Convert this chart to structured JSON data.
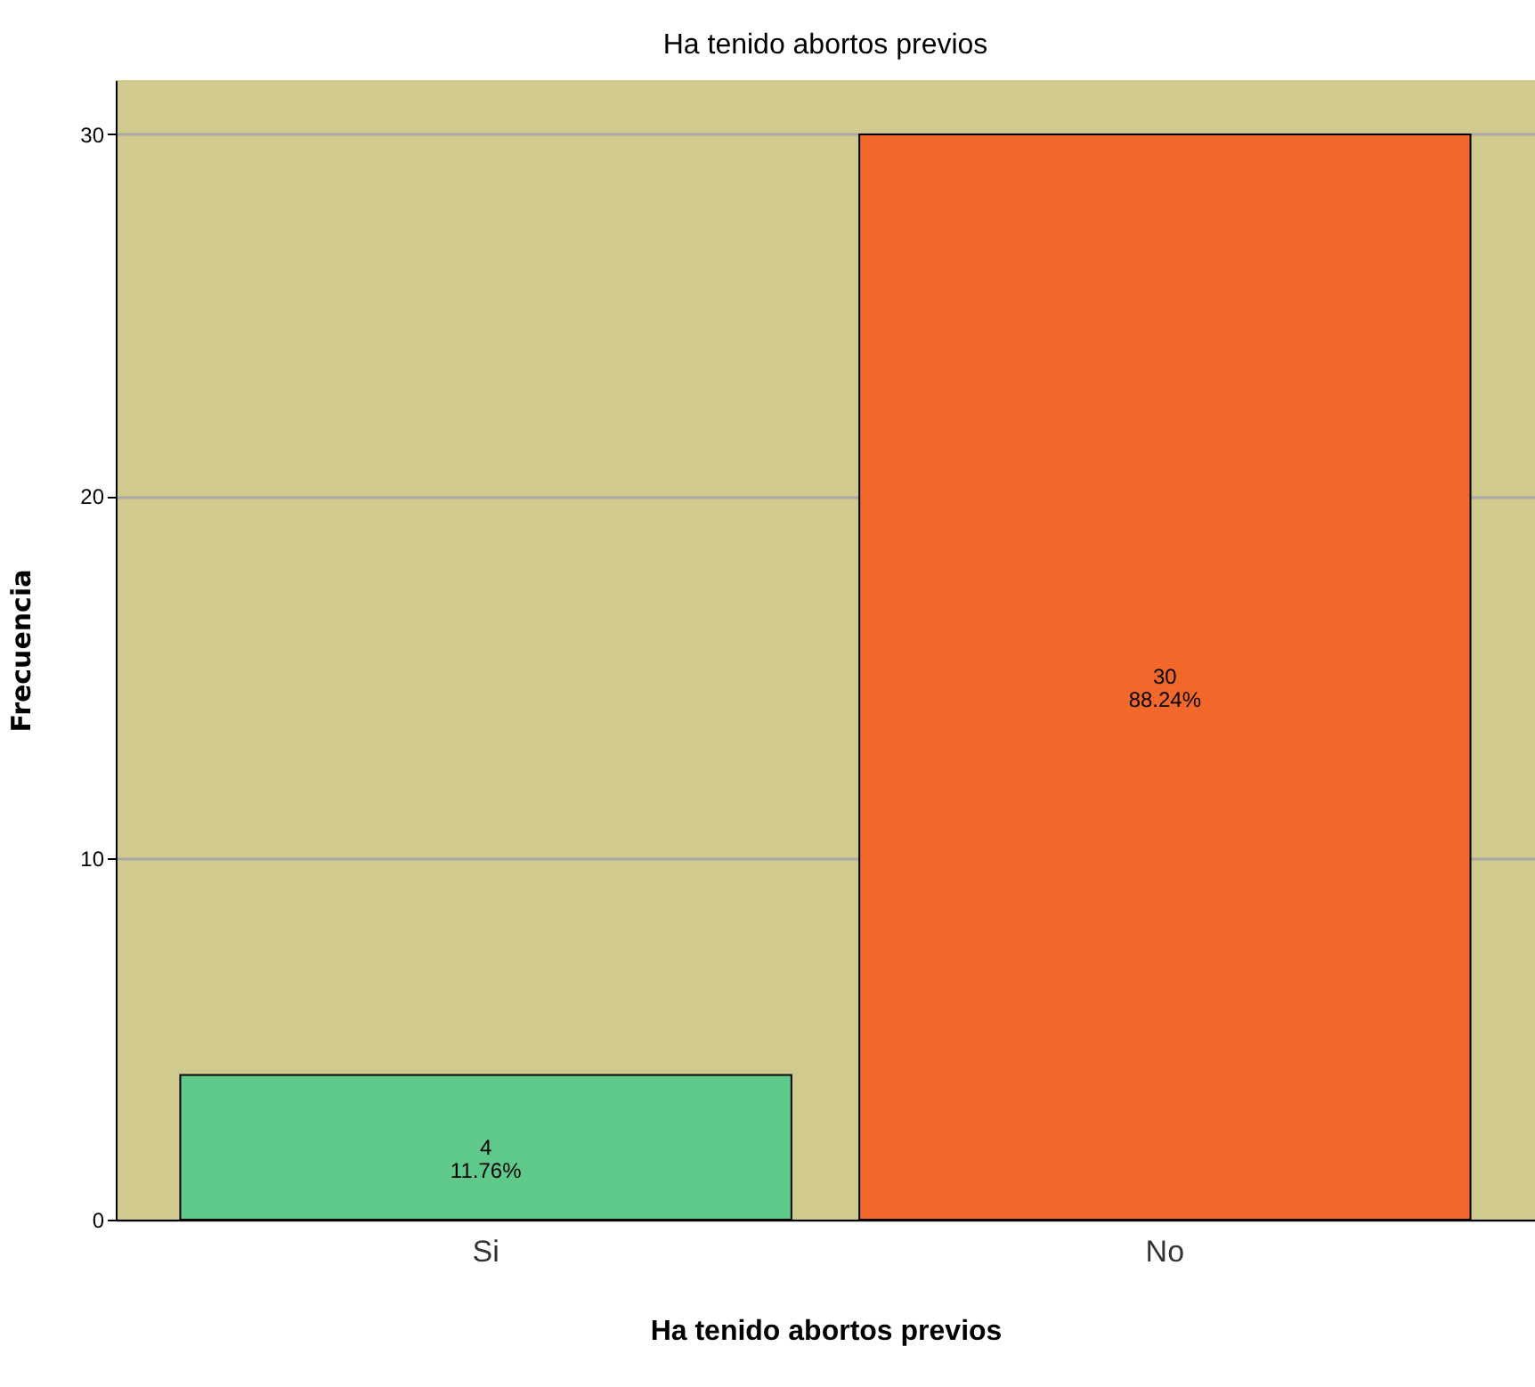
{
  "chart_data": {
    "type": "bar",
    "title": "Ha tenido abortos previos",
    "xlabel": "Ha tenido abortos previos",
    "ylabel": "Frecuencia",
    "categories": [
      "Si",
      "No"
    ],
    "values": [
      4,
      30
    ],
    "colors": [
      "#5ec98a",
      "#f2672a"
    ],
    "value_labels": [
      "4\n11.76%",
      "30\n88.24%"
    ],
    "ylim": [
      0,
      31.5
    ],
    "yticks": [
      0,
      10,
      20,
      30
    ],
    "grid": "y"
  }
}
